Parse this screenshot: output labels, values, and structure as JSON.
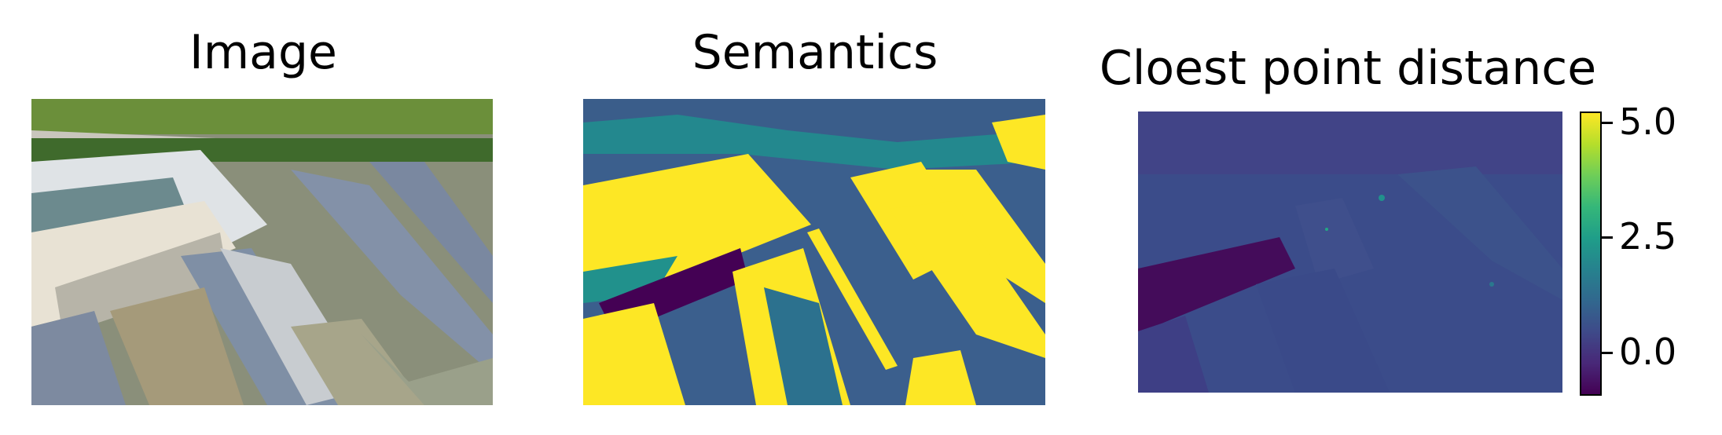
{
  "titles": {
    "image": "Image",
    "semantics": "Semantics",
    "distance": "Cloest point distance"
  },
  "colorbar": {
    "ticks": [
      "5.0",
      "2.5",
      "0.0"
    ],
    "range": [
      -0.9,
      5.2
    ],
    "colormap": "viridis"
  },
  "colors": {
    "viridis_low": "#440154",
    "viridis_mid": "#21918c",
    "viridis_high": "#fde725"
  }
}
